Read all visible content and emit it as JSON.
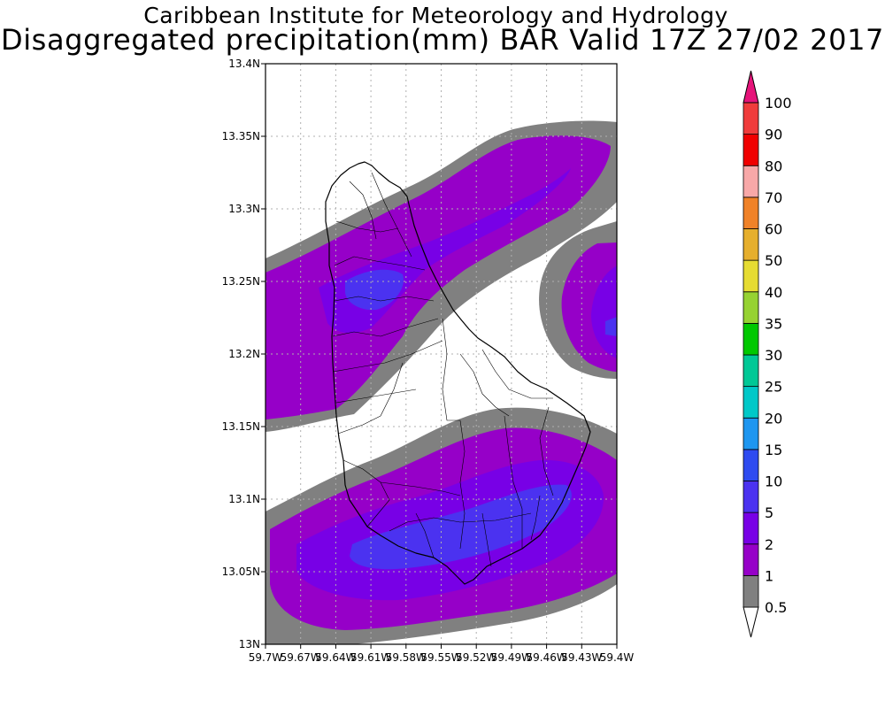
{
  "header": {
    "institute": "Caribbean Institute for Meteorology and Hydrology",
    "product": "Disaggregated precipitation(mm) BAR Valid 17Z 27/02 2017"
  },
  "map": {
    "lat_ticks": [
      "13N",
      "13.05N",
      "13.1N",
      "13.15N",
      "13.2N",
      "13.25N",
      "13.3N",
      "13.35N",
      "13.4N"
    ],
    "lon_ticks": [
      "59.7W",
      "59.67W",
      "59.64W",
      "59.61W",
      "59.58W",
      "59.55W",
      "59.52W",
      "59.49W",
      "59.46W",
      "59.43W",
      "59.4W"
    ],
    "grid": true,
    "frame_color": "#000000"
  },
  "colorbar": {
    "labels": [
      "0.5",
      "1",
      "2",
      "5",
      "10",
      "15",
      "20",
      "25",
      "30",
      "35",
      "40",
      "50",
      "60",
      "70",
      "80",
      "90",
      "100"
    ],
    "colors": [
      "#808080",
      "#9600c8",
      "#7800e6",
      "#4b32f0",
      "#2e4bf0",
      "#1e96f0",
      "#00c8c8",
      "#00c896",
      "#00c800",
      "#96d232",
      "#e6dc32",
      "#e6af2d",
      "#f08228",
      "#f8a8a8",
      "#f00000",
      "#f03c3c",
      "#f01e78"
    ],
    "below_color": "#ffffff",
    "above_color": "#e6147a"
  },
  "legend_colors": {
    "c05": "#808080",
    "c1": "#9600c8",
    "c2": "#7800e6",
    "c5": "#4b32f0"
  }
}
